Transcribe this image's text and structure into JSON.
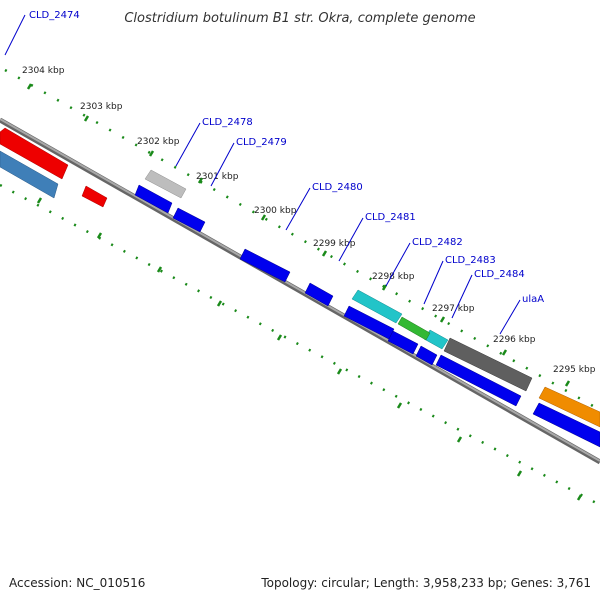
{
  "title": "Clostridium botulinum B1 str. Okra, complete genome",
  "footer": {
    "accession_label": "Accession:",
    "accession": "NC_010516",
    "topology_label": "Topology:",
    "topology": "circular",
    "length_label": "Length:",
    "length": "3,958,233 bp",
    "genes_label": "Genes:",
    "genes": "3,761"
  },
  "ticks": [
    "2304 kbp",
    "2303 kbp",
    "2302 kbp",
    "2301 kbp",
    "2300 kbp",
    "2299 kbp",
    "2298 kbp",
    "2297 kbp",
    "2296 kbp",
    "2295 kbp"
  ],
  "gene_labels": [
    "CLD_2474",
    "CLD_2478",
    "CLD_2479",
    "CLD_2480",
    "CLD_2481",
    "CLD_2482",
    "CLD_2483",
    "CLD_2484",
    "ulaA"
  ],
  "colors": {
    "backbone": "#7a7a7a",
    "tick": "#1a8a1a",
    "label": "#0000cc",
    "cds": "#0000ee",
    "red": "#ee0000",
    "steelblue": "#3f7fb8",
    "gray": "#bdbdbd",
    "cyan": "#22c4c8",
    "green": "#33b833",
    "darkgray": "#5f5f5f",
    "orange": "#f08c00"
  }
}
